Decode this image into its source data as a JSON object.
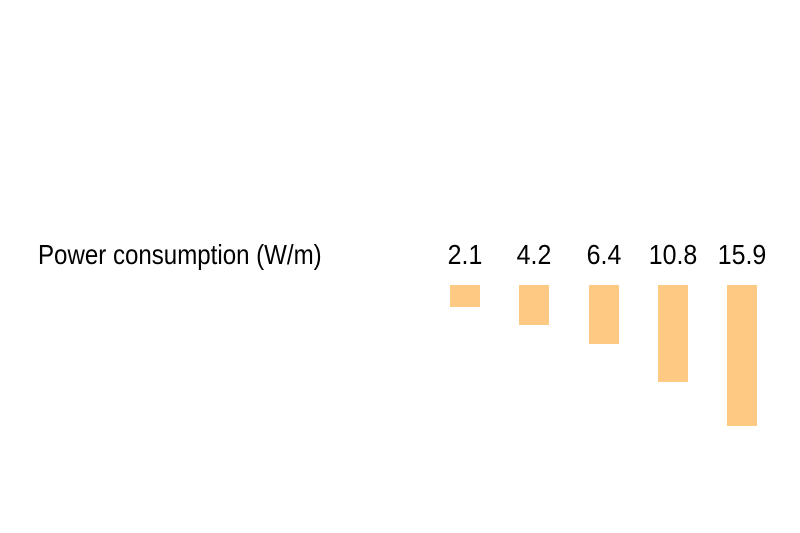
{
  "chart_data": {
    "type": "bar",
    "title": "Power consumption (W/m)",
    "values": [
      2.1,
      4.2,
      6.4,
      10.8,
      15.9
    ],
    "data_labels": [
      "2.1",
      "4.2",
      "6.4",
      "10.8",
      "15.9"
    ],
    "unit": "W/m",
    "orientation": "vertical columns extending downward from a shared top baseline",
    "value_axis_direction": "down",
    "axes_visible": false,
    "tick_labels": [],
    "grid": false,
    "legend": false,
    "colors": {
      "bar": "#FDC983",
      "text": "#000000",
      "background": "#FFFFFF"
    }
  }
}
